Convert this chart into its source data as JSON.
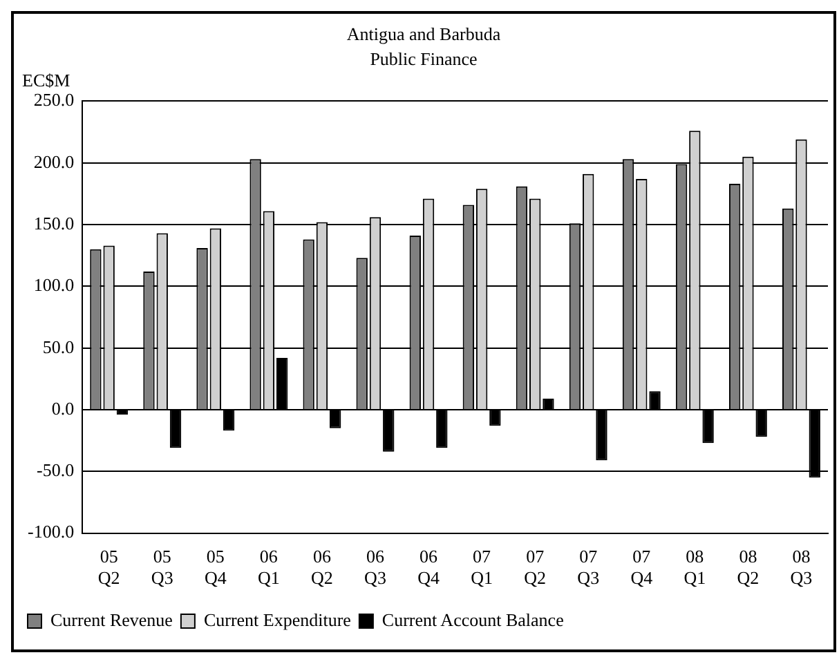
{
  "chart_data": {
    "type": "bar",
    "title": "Antigua and Barbuda",
    "subtitle": "Public Finance",
    "ylabel": "EC$M",
    "categories": [
      "05\nQ2",
      "05\nQ3",
      "05\nQ4",
      "06\nQ1",
      "06\nQ2",
      "06\nQ3",
      "06\nQ4",
      "07\nQ1",
      "07\nQ2",
      "07\nQ3",
      "07\nQ4",
      "08\nQ1",
      "08\nQ2",
      "08\nQ3"
    ],
    "series": [
      {
        "name": "Current Revenue",
        "color": "#808080",
        "values": [
          130,
          112,
          131,
          203,
          138,
          123,
          141,
          166,
          181,
          151,
          203,
          199,
          183,
          163
        ]
      },
      {
        "name": "Current Expenditure",
        "color": "#d0d0d0",
        "values": [
          133,
          143,
          147,
          161,
          152,
          156,
          171,
          179,
          171,
          191,
          187,
          226,
          205,
          219
        ]
      },
      {
        "name": "Current Account Balance",
        "color": "#000000",
        "values": [
          -4,
          -31,
          -17,
          42,
          -15,
          -34,
          -31,
          -13,
          9,
          -41,
          15,
          -27,
          -22,
          -55
        ]
      }
    ],
    "ylim": [
      -100,
      250
    ],
    "yticks": [
      {
        "value": -100,
        "label": "-100.0"
      },
      {
        "value": -50,
        "label": "-50.0"
      },
      {
        "value": 0,
        "label": "0.0"
      },
      {
        "value": 50,
        "label": "50.0"
      },
      {
        "value": 100,
        "label": "100.0"
      },
      {
        "value": 150,
        "label": "150.0"
      },
      {
        "value": 200,
        "label": "200.0"
      },
      {
        "value": 250,
        "label": "250.0"
      }
    ],
    "grid": "y",
    "legend": "bottom"
  }
}
